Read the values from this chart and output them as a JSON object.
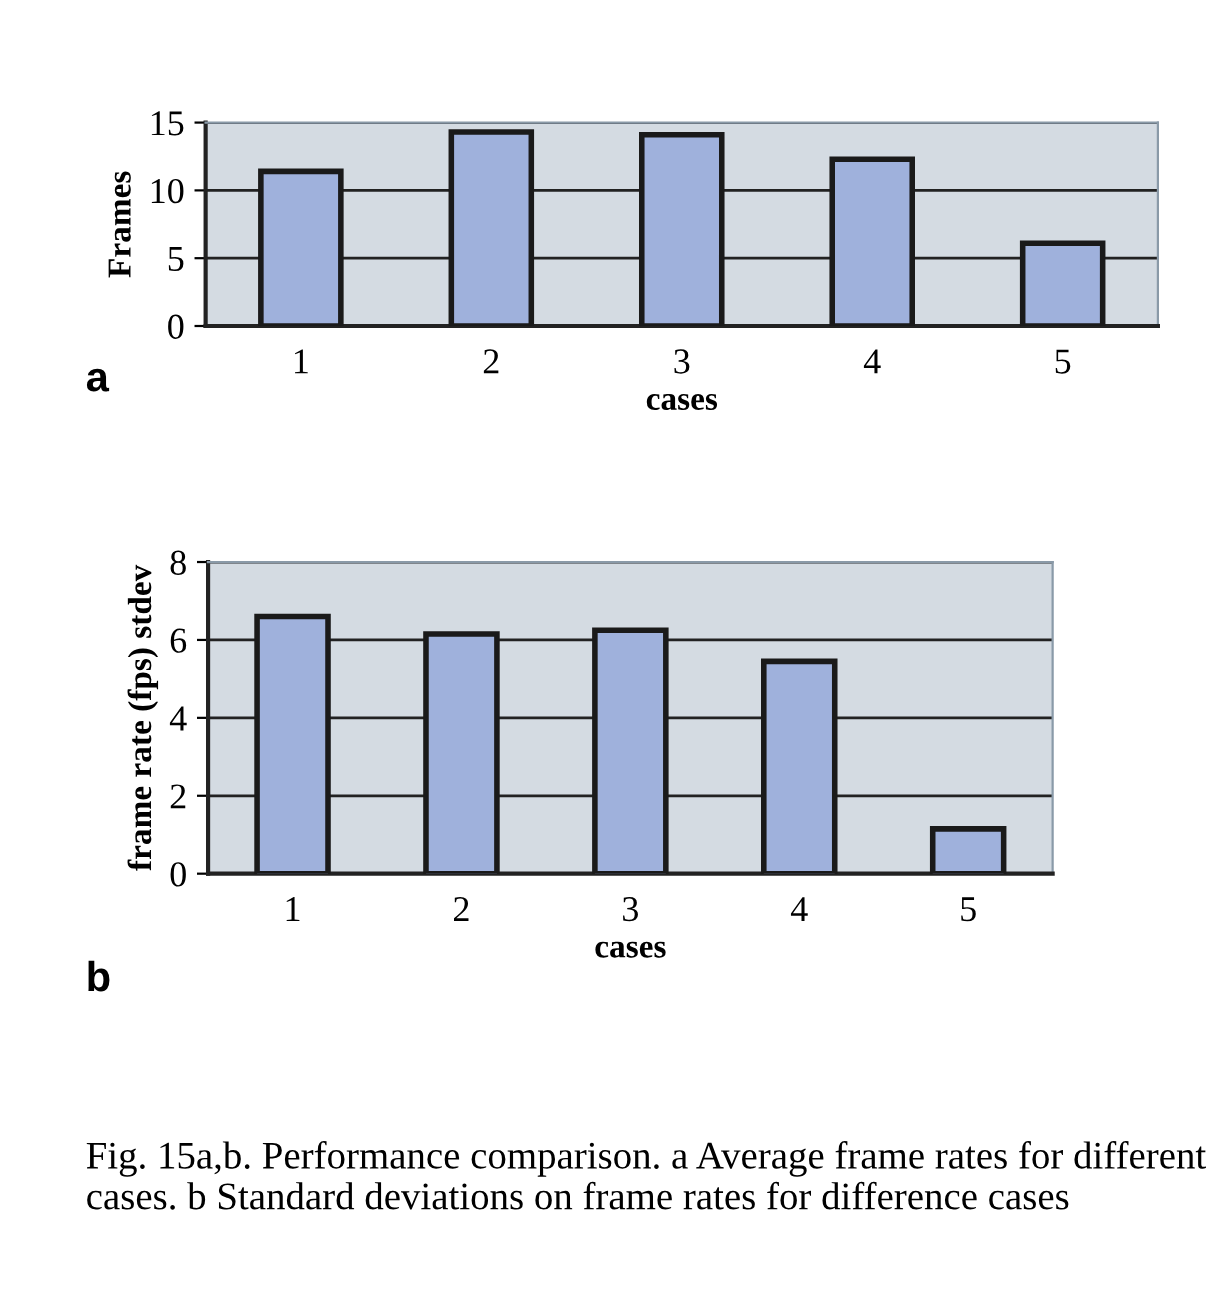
{
  "chart_data": [
    {
      "type": "bar",
      "categories": [
        "1",
        "2",
        "3",
        "4",
        "5"
      ],
      "values": [
        11.4,
        14.3,
        14.1,
        12.3,
        6.1
      ],
      "color": "#9fb1dc",
      "xlabel": "cases",
      "ylabel": "Frames",
      "ylim": [
        0,
        15
      ],
      "yticks": [
        0,
        5,
        10,
        15
      ],
      "grid": "y",
      "annotations": [
        "a"
      ]
    },
    {
      "type": "bar",
      "categories": [
        "1",
        "2",
        "3",
        "4",
        "5"
      ],
      "values": [
        6.6,
        6.15,
        6.25,
        5.45,
        1.15
      ],
      "color": "#9fb1dc",
      "xlabel": "cases",
      "ylabel": "frame rate (fps) stdev",
      "ylim": [
        0,
        8
      ],
      "yticks": [
        0,
        2,
        4,
        6,
        8
      ],
      "grid": "y",
      "annotations": [
        "b",
        "Fig. 15a,b. Performance comparison. a Average frame rates for different cases. b Standard deviations on frame rates for difference cases"
      ]
    }
  ]
}
